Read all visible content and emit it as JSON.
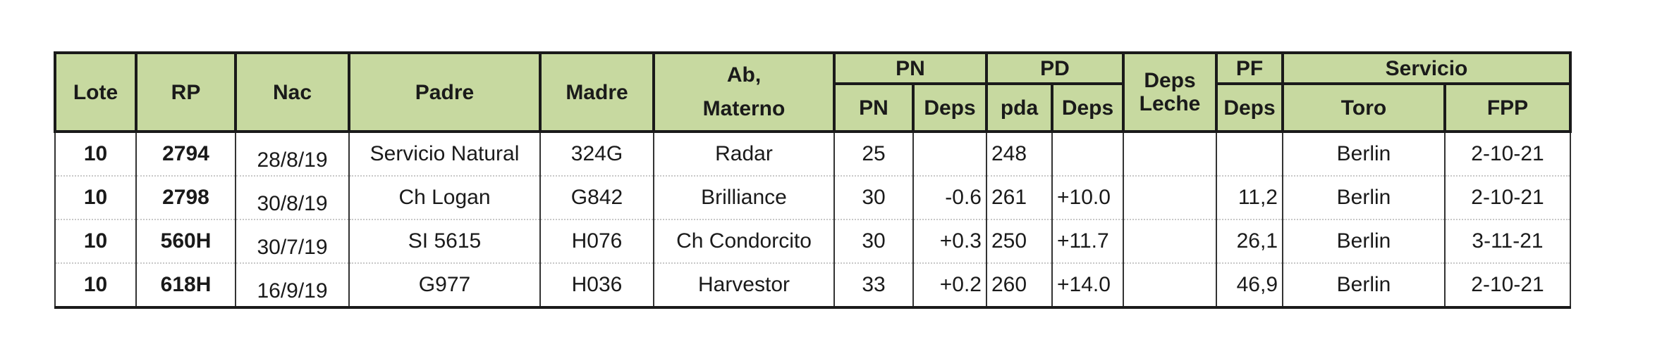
{
  "colors": {
    "header_bg": "#c7d9a0",
    "border": "#1a1a1a"
  },
  "headers": {
    "lote": "Lote",
    "rp": "RP",
    "nac": "Nac",
    "padre": "Padre",
    "madre": "Madre",
    "ab_line1": "Ab,",
    "ab_line2": "Materno",
    "pn_group": "PN",
    "pn_pn": "PN",
    "pn_deps": "Deps",
    "pd_group": "PD",
    "pd_pda": "pda",
    "pd_deps": "Deps",
    "leche_line1": "Deps",
    "leche_line2": "Leche",
    "pf_group": "PF",
    "pf_deps": "Deps",
    "servicio_group": "Servicio",
    "toro": "Toro",
    "fpp": "FPP"
  },
  "rows": [
    {
      "lote": "10",
      "rp": "2794",
      "nac": "28/8/19",
      "padre": "Servicio Natural",
      "madre": "324G",
      "ab": "Radar",
      "pn": "25",
      "pn_deps": "",
      "pda": "248",
      "pd_deps": "",
      "leche": "",
      "pf_deps": "",
      "toro": "Berlin",
      "fpp": "2-10-21"
    },
    {
      "lote": "10",
      "rp": "2798",
      "nac": "30/8/19",
      "padre": "Ch Logan",
      "madre": "G842",
      "ab": "Brilliance",
      "pn": "30",
      "pn_deps": "-0.6",
      "pda": "261",
      "pd_deps": "+10.0",
      "leche": "",
      "pf_deps": "11,2",
      "toro": "Berlin",
      "fpp": "2-10-21"
    },
    {
      "lote": "10",
      "rp": "560H",
      "nac": "30/7/19",
      "padre": "SI 5615",
      "madre": "H076",
      "ab": "Ch Condorcito",
      "pn": "30",
      "pn_deps": "+0.3",
      "pda": "250",
      "pd_deps": "+11.7",
      "leche": "",
      "pf_deps": "26,1",
      "toro": "Berlin",
      "fpp": "3-11-21"
    },
    {
      "lote": "10",
      "rp": "618H",
      "nac": "16/9/19",
      "padre": "G977",
      "madre": "H036",
      "ab": "Harvestor",
      "pn": "33",
      "pn_deps": "+0.2",
      "pda": "260",
      "pd_deps": "+14.0",
      "leche": "",
      "pf_deps": "46,9",
      "toro": "Berlin",
      "fpp": "2-10-21"
    }
  ]
}
